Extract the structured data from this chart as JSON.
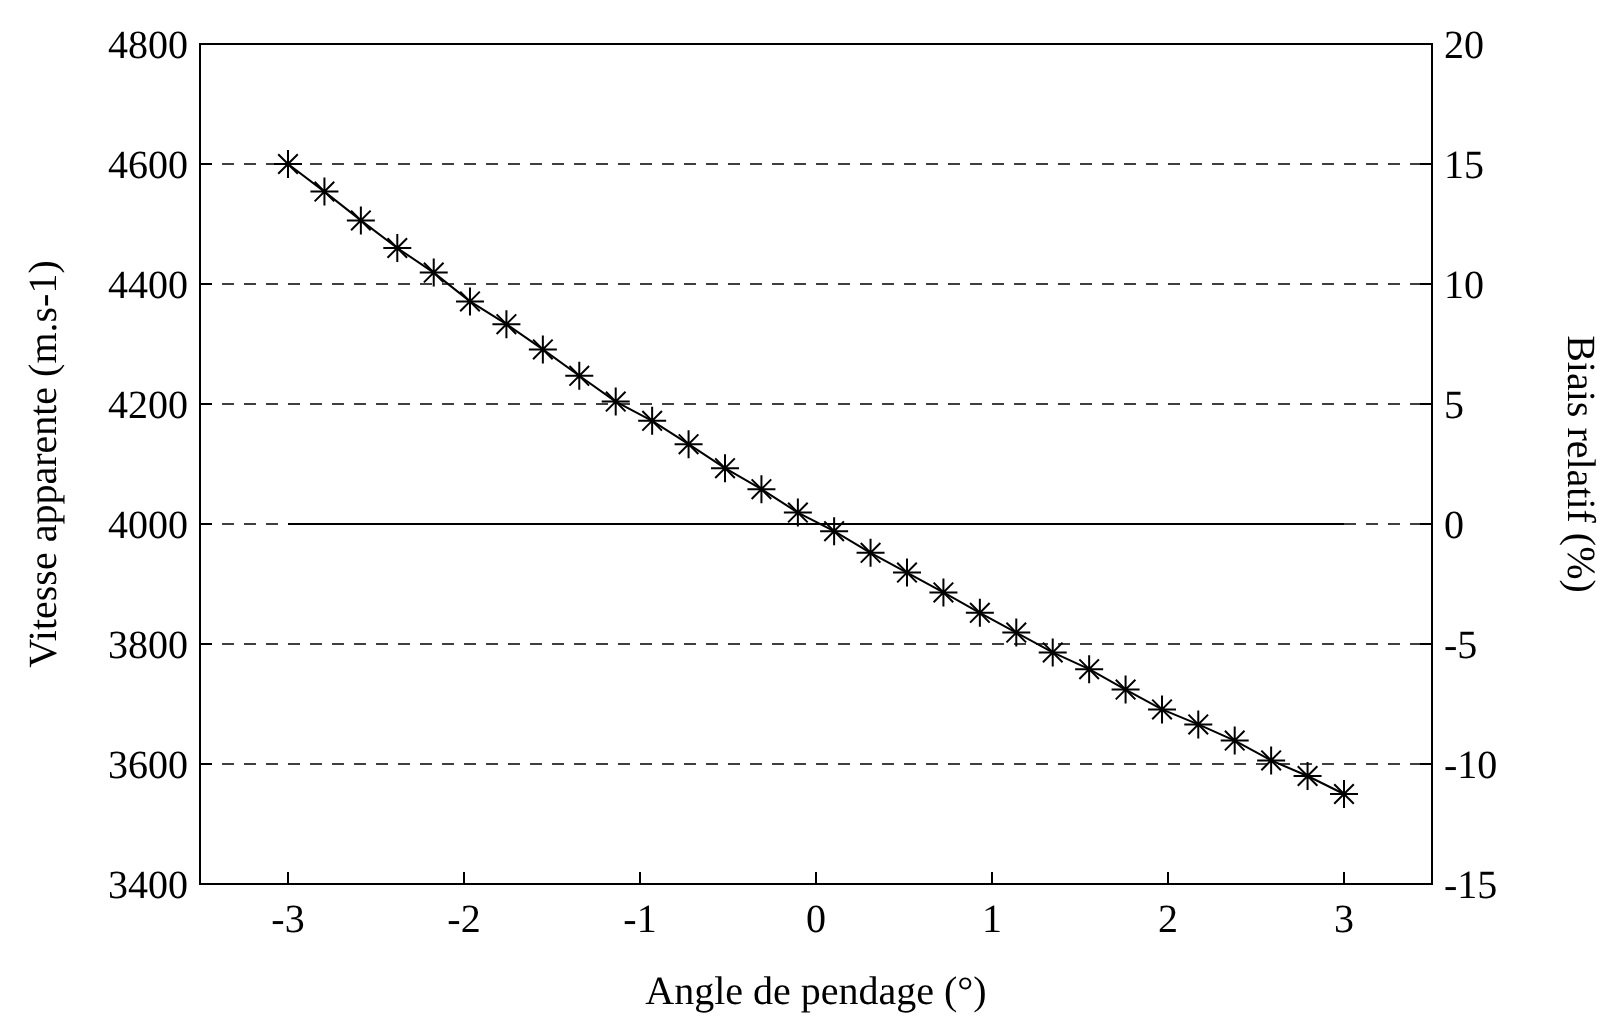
{
  "chart_data": {
    "type": "line",
    "xlabel": "Angle de pendage (°)",
    "ylabel": "Vitesse apparente (m.s-1)",
    "y2label": "Biais relatif (%)",
    "xlim": [
      -3.5,
      3.5
    ],
    "xticks": [
      -3,
      -2,
      -1,
      0,
      1,
      2,
      3
    ],
    "ylim": [
      3400,
      4800
    ],
    "yticks": [
      3400,
      3600,
      3800,
      4000,
      4200,
      4400,
      4600,
      4800
    ],
    "y2lim": [
      -15,
      20
    ],
    "y2ticks": [
      -15,
      -10,
      -5,
      0,
      5,
      10,
      15,
      20
    ],
    "grid": "y",
    "series": [
      {
        "color": "#000000",
        "marker": "cross",
        "x": [
          -3,
          -2.793,
          -2.586,
          -2.379,
          -2.172,
          -1.966,
          -1.759,
          -1.552,
          -1.345,
          -1.138,
          -0.931,
          -0.724,
          -0.517,
          -0.31,
          -0.103,
          0.103,
          0.31,
          0.517,
          0.724,
          0.931,
          1.138,
          1.345,
          1.552,
          1.759,
          1.966,
          2.172,
          2.379,
          2.586,
          2.793,
          3
        ],
        "values": [
          4600,
          4554,
          4506,
          4460,
          4419,
          4371,
          4333,
          4291,
          4247,
          4204,
          4172,
          4133,
          4093,
          4058,
          4019,
          3988,
          3952,
          3919,
          3886,
          3852,
          3819,
          3786,
          3758,
          3724,
          3691,
          3666,
          3639,
          3606,
          3580,
          3550
        ]
      },
      {
        "color": "#000000",
        "marker": "none",
        "x": [
          -3,
          3
        ],
        "values": [
          4000,
          4000
        ]
      }
    ]
  }
}
